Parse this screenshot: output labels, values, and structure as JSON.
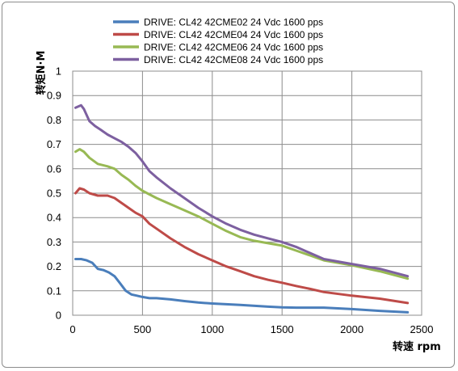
{
  "chart_data": {
    "type": "line",
    "xlabel": "转速 rpm",
    "ylabel": "转矩N·M",
    "xlim": [
      0,
      2500
    ],
    "ylim": [
      0,
      1
    ],
    "xticks": [
      "0",
      "500",
      "1000",
      "1500",
      "2000",
      "2500"
    ],
    "yticks": [
      "0",
      "0.1",
      "0.2",
      "0.3",
      "0.4",
      "0.5",
      "0.6",
      "0.7",
      "0.8",
      "0.9",
      "1"
    ],
    "grid": true,
    "legend_position": "top",
    "series": [
      {
        "name": "DRIVE: CL42 42CME02 24 Vdc  1600 pps",
        "color": "#4a7ebb",
        "x": [
          20,
          60,
          100,
          140,
          180,
          220,
          260,
          300,
          340,
          380,
          420,
          460,
          500,
          550,
          600,
          700,
          800,
          900,
          1000,
          1200,
          1400,
          1500,
          1600,
          1800,
          2000,
          2200,
          2400
        ],
        "y": [
          0.23,
          0.23,
          0.225,
          0.215,
          0.19,
          0.185,
          0.175,
          0.16,
          0.13,
          0.1,
          0.085,
          0.08,
          0.075,
          0.07,
          0.07,
          0.065,
          0.058,
          0.052,
          0.048,
          0.042,
          0.035,
          0.032,
          0.031,
          0.031,
          0.025,
          0.018,
          0.012
        ]
      },
      {
        "name": "DRIVE: CL42 42CME04 24 Vdc  1600 pps",
        "color": "#be4b48",
        "x": [
          20,
          50,
          80,
          120,
          180,
          250,
          300,
          350,
          400,
          450,
          500,
          550,
          600,
          700,
          800,
          900,
          1000,
          1100,
          1200,
          1300,
          1400,
          1500,
          1600,
          1700,
          1800,
          2000,
          2200,
          2400
        ],
        "y": [
          0.5,
          0.52,
          0.515,
          0.5,
          0.49,
          0.49,
          0.48,
          0.46,
          0.44,
          0.42,
          0.405,
          0.375,
          0.355,
          0.315,
          0.28,
          0.25,
          0.225,
          0.2,
          0.18,
          0.16,
          0.145,
          0.133,
          0.12,
          0.108,
          0.095,
          0.08,
          0.068,
          0.05
        ]
      },
      {
        "name": "DRIVE: CL42 42CME06 24 Vdc  1600 pps",
        "color": "#98b954",
        "x": [
          20,
          50,
          80,
          120,
          180,
          250,
          300,
          350,
          400,
          450,
          500,
          550,
          600,
          700,
          800,
          900,
          1000,
          1100,
          1200,
          1300,
          1400,
          1500,
          1600,
          1700,
          1800,
          2000,
          2200,
          2400
        ],
        "y": [
          0.67,
          0.68,
          0.67,
          0.645,
          0.62,
          0.61,
          0.6,
          0.575,
          0.555,
          0.53,
          0.51,
          0.495,
          0.48,
          0.455,
          0.43,
          0.405,
          0.375,
          0.345,
          0.32,
          0.305,
          0.295,
          0.285,
          0.265,
          0.245,
          0.225,
          0.205,
          0.18,
          0.15
        ]
      },
      {
        "name": "DRIVE: CL42 42CME08 24 Vdc  1600 pps",
        "color": "#7d60a0",
        "x": [
          20,
          40,
          60,
          80,
          120,
          160,
          200,
          250,
          300,
          350,
          400,
          450,
          500,
          550,
          600,
          700,
          800,
          900,
          1000,
          1100,
          1200,
          1300,
          1400,
          1500,
          1600,
          1700,
          1800,
          2000,
          2200,
          2400
        ],
        "y": [
          0.85,
          0.855,
          0.86,
          0.845,
          0.795,
          0.775,
          0.76,
          0.74,
          0.725,
          0.71,
          0.69,
          0.665,
          0.63,
          0.59,
          0.565,
          0.52,
          0.48,
          0.44,
          0.405,
          0.375,
          0.35,
          0.33,
          0.315,
          0.3,
          0.28,
          0.255,
          0.23,
          0.21,
          0.19,
          0.16
        ]
      }
    ]
  }
}
